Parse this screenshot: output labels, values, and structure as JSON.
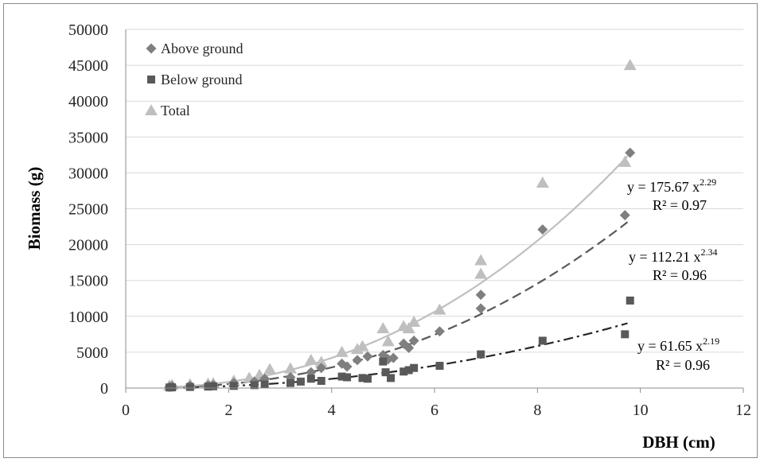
{
  "chart_data": {
    "type": "scatter",
    "title": "",
    "xlabel": "DBH (cm)",
    "ylabel": "Biomass (g)",
    "xlim": [
      0,
      12
    ],
    "ylim": [
      0,
      50000
    ],
    "x_ticks": [
      "0",
      "2",
      "4",
      "6",
      "8",
      "10",
      "12"
    ],
    "y_ticks": [
      "0",
      "5000",
      "10000",
      "15000",
      "20000",
      "25000",
      "30000",
      "35000",
      "40000",
      "45000",
      "50000"
    ],
    "grid": "horizontal",
    "legend_position": "top-left",
    "series": [
      {
        "name": "Above ground",
        "marker": "diamond",
        "color": "#7f7f7f",
        "fit": {
          "a": 112.21,
          "b": 2.34,
          "style": "dashed",
          "color": "#595959"
        },
        "points": [
          [
            0.85,
            150
          ],
          [
            0.9,
            250
          ],
          [
            1.25,
            300
          ],
          [
            1.6,
            350
          ],
          [
            1.7,
            400
          ],
          [
            2.1,
            700
          ],
          [
            2.5,
            900
          ],
          [
            2.7,
            1300
          ],
          [
            3.2,
            1500
          ],
          [
            3.6,
            2200
          ],
          [
            3.8,
            2800
          ],
          [
            4.2,
            3400
          ],
          [
            4.3,
            3000
          ],
          [
            4.5,
            3900
          ],
          [
            4.7,
            4400
          ],
          [
            5.0,
            4600
          ],
          [
            5.1,
            4000
          ],
          [
            5.2,
            4200
          ],
          [
            5.4,
            6200
          ],
          [
            5.5,
            5600
          ],
          [
            5.6,
            6600
          ],
          [
            6.1,
            7900
          ],
          [
            6.9,
            11100
          ],
          [
            6.9,
            13000
          ],
          [
            8.1,
            22100
          ],
          [
            9.7,
            24100
          ],
          [
            9.8,
            32800
          ]
        ]
      },
      {
        "name": "Below ground",
        "marker": "square",
        "color": "#595959",
        "fit": {
          "a": 61.65,
          "b": 2.19,
          "style": "dash-dot",
          "color": "#262626"
        },
        "points": [
          [
            0.85,
            80
          ],
          [
            0.9,
            100
          ],
          [
            1.25,
            150
          ],
          [
            1.6,
            200
          ],
          [
            1.7,
            250
          ],
          [
            2.1,
            300
          ],
          [
            2.5,
            400
          ],
          [
            2.7,
            500
          ],
          [
            3.2,
            700
          ],
          [
            3.4,
            900
          ],
          [
            3.6,
            1300
          ],
          [
            3.8,
            1000
          ],
          [
            4.2,
            1600
          ],
          [
            4.3,
            1500
          ],
          [
            4.6,
            1400
          ],
          [
            4.7,
            1300
          ],
          [
            5.0,
            3700
          ],
          [
            5.05,
            2200
          ],
          [
            5.15,
            1400
          ],
          [
            5.4,
            2300
          ],
          [
            5.5,
            2500
          ],
          [
            5.6,
            2800
          ],
          [
            6.1,
            3100
          ],
          [
            6.9,
            4700
          ],
          [
            8.1,
            6600
          ],
          [
            9.7,
            7500
          ],
          [
            9.8,
            12200
          ]
        ]
      },
      {
        "name": "Total",
        "marker": "triangle",
        "color": "#bfbfbf",
        "fit": {
          "a": 175.67,
          "b": 2.29,
          "style": "solid",
          "color": "#bfbfbf"
        },
        "points": [
          [
            0.85,
            300
          ],
          [
            0.9,
            400
          ],
          [
            1.25,
            500
          ],
          [
            1.6,
            600
          ],
          [
            1.7,
            650
          ],
          [
            2.1,
            1000
          ],
          [
            2.4,
            1400
          ],
          [
            2.6,
            1800
          ],
          [
            2.8,
            2600
          ],
          [
            3.2,
            2700
          ],
          [
            3.6,
            3900
          ],
          [
            3.8,
            3600
          ],
          [
            4.2,
            5000
          ],
          [
            4.5,
            5400
          ],
          [
            4.6,
            5800
          ],
          [
            5.0,
            8300
          ],
          [
            5.1,
            6500
          ],
          [
            5.4,
            8600
          ],
          [
            5.5,
            8300
          ],
          [
            5.6,
            9200
          ],
          [
            6.1,
            10900
          ],
          [
            6.9,
            15900
          ],
          [
            6.9,
            17800
          ],
          [
            8.1,
            28600
          ],
          [
            9.7,
            31500
          ],
          [
            9.8,
            45000
          ]
        ]
      }
    ]
  },
  "equations": [
    {
      "text": "y = 175.67 x",
      "exp": "2.29",
      "r2": "R² = 0.97"
    },
    {
      "text": "y = 112.21 x",
      "exp": "2.34",
      "r2": "R² = 0.96"
    },
    {
      "text": "y = 61.65 x",
      "exp": "2.19",
      "r2": "R² = 0.96"
    }
  ]
}
